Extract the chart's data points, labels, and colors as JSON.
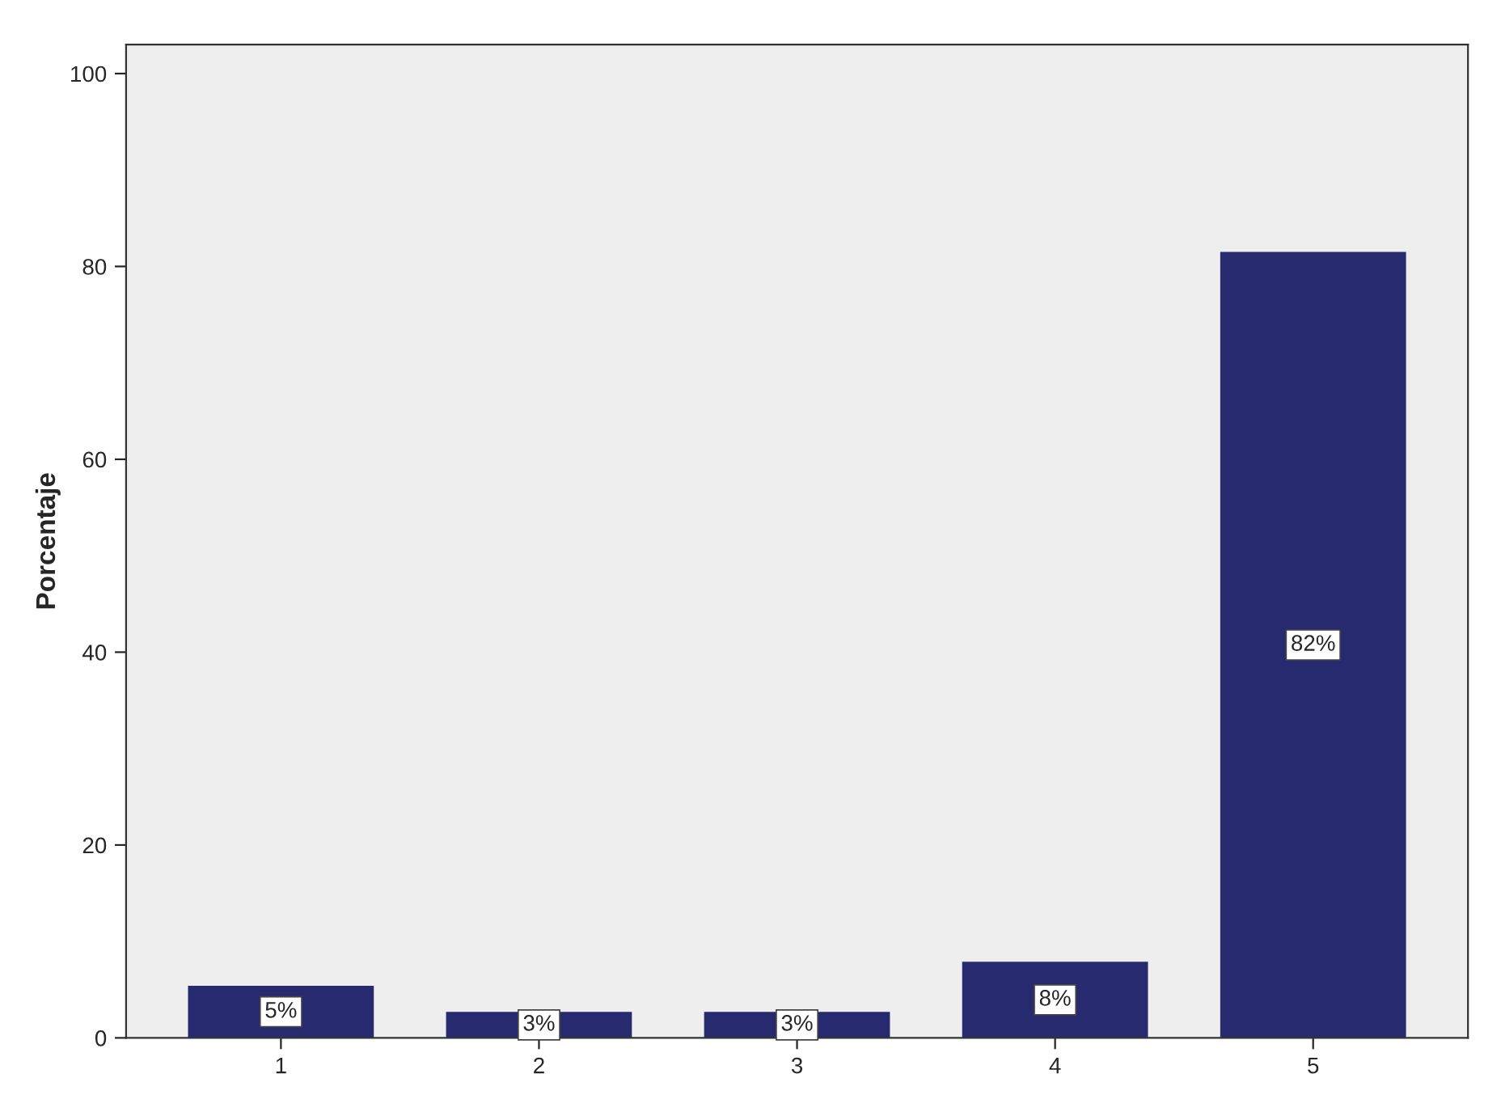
{
  "chart_data": {
    "type": "bar",
    "ylabel": "Porcentaje",
    "categories": [
      "1",
      "2",
      "3",
      "4",
      "5"
    ],
    "values": [
      5.4,
      2.7,
      2.7,
      7.9,
      81.5
    ],
    "value_labels": [
      "5%",
      "3%",
      "3%",
      "8%",
      "82%"
    ],
    "color": "#272a6e",
    "ylim": [
      0,
      103
    ],
    "yticks": [
      0,
      20,
      40,
      60,
      80,
      100
    ],
    "grid": false
  }
}
